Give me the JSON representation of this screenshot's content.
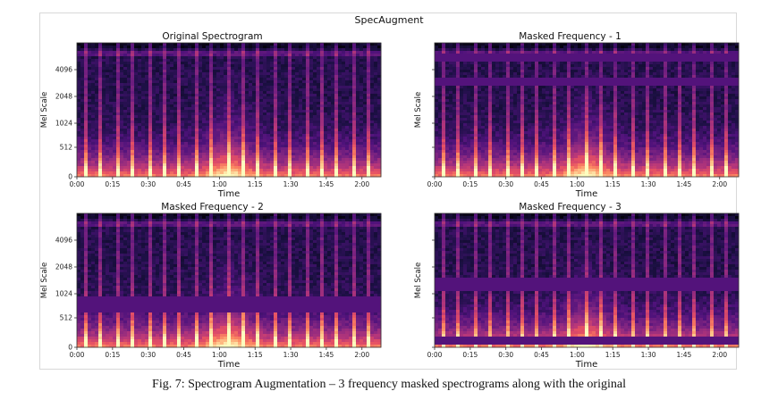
{
  "figure": {
    "suptitle": "SpecAugment",
    "caption": "Fig. 7: Spectrogram Augmentation – 3 frequency masked spectrograms along with the original"
  },
  "chart_data": [
    {
      "type": "heatmap",
      "title": "Original Spectrogram",
      "xlabel": "Time",
      "ylabel": "Mel Scale",
      "x_ticks": [
        "0:00",
        "0:15",
        "0:30",
        "0:45",
        "1:00",
        "1:15",
        "1:30",
        "1:45",
        "2:00"
      ],
      "y_ticks": [
        "0",
        "512",
        "1024",
        "2048",
        "4096"
      ],
      "show_y_tick_labels": true,
      "colormap": "magma",
      "frequency_masks": []
    },
    {
      "type": "heatmap",
      "title": "Masked Frequency - 1",
      "xlabel": "Time",
      "ylabel": "Mel Scale",
      "x_ticks": [
        "0:00",
        "0:15",
        "0:30",
        "0:45",
        "1:00",
        "1:15",
        "1:30",
        "1:45",
        "2:00"
      ],
      "y_ticks": [
        "0",
        "512",
        "1024",
        "2048",
        "4096"
      ],
      "show_y_tick_labels": false,
      "colormap": "magma",
      "frequency_masks": [
        [
          5500,
          6400
        ],
        [
          3000,
          3300
        ]
      ]
    },
    {
      "type": "heatmap",
      "title": "Masked Frequency - 2",
      "xlabel": "Time",
      "ylabel": "Mel Scale",
      "x_ticks": [
        "0:00",
        "0:15",
        "0:30",
        "0:45",
        "1:00",
        "1:15",
        "1:30",
        "1:45",
        "2:00"
      ],
      "y_ticks": [
        "0",
        "512",
        "1024",
        "2048",
        "4096"
      ],
      "show_y_tick_labels": true,
      "colormap": "magma",
      "frequency_masks": [
        [
          680,
          940
        ]
      ]
    },
    {
      "type": "heatmap",
      "title": "Masked Frequency - 3",
      "xlabel": "Time",
      "ylabel": "Mel Scale",
      "x_ticks": [
        "0:00",
        "0:15",
        "0:30",
        "0:45",
        "1:00",
        "1:15",
        "1:30",
        "1:45",
        "2:00"
      ],
      "y_ticks": [
        "0",
        "512",
        "1024",
        "2048",
        "4096"
      ],
      "show_y_tick_labels": false,
      "colormap": "magma",
      "frequency_masks": [
        [
          1200,
          1600
        ],
        [
          80,
          150
        ]
      ]
    }
  ]
}
